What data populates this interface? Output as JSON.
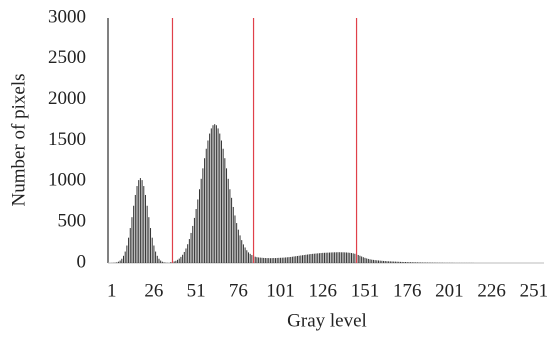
{
  "chart_data": {
    "type": "bar",
    "x_label": "Gray level",
    "y_label": "Number of pixels",
    "x": [
      1,
      2,
      3,
      4,
      5,
      6,
      7,
      8,
      9,
      10,
      11,
      12,
      13,
      14,
      15,
      16,
      17,
      18,
      19,
      20,
      21,
      22,
      23,
      24,
      25,
      26,
      27,
      28,
      29,
      30,
      31,
      32,
      33,
      34,
      35,
      36,
      37,
      38,
      39,
      40,
      41,
      42,
      43,
      44,
      45,
      46,
      47,
      48,
      49,
      50,
      51,
      52,
      53,
      54,
      55,
      56,
      57,
      58,
      59,
      60,
      61,
      62,
      63,
      64,
      65,
      66,
      67,
      68,
      69,
      70,
      71,
      72,
      73,
      74,
      75,
      76,
      77,
      78,
      79,
      80,
      81,
      82,
      83,
      84,
      85,
      86,
      87,
      88,
      89,
      90,
      91,
      92,
      93,
      94,
      95,
      96,
      97,
      98,
      99,
      100,
      101,
      102,
      103,
      104,
      105,
      106,
      107,
      108,
      109,
      110,
      111,
      112,
      113,
      114,
      115,
      116,
      117,
      118,
      119,
      120,
      121,
      122,
      123,
      124,
      125,
      126,
      127,
      128,
      129,
      130,
      131,
      132,
      133,
      134,
      135,
      136,
      137,
      138,
      139,
      140,
      141,
      142,
      143,
      144,
      145,
      146,
      147,
      148,
      149,
      150,
      151,
      152,
      153,
      154,
      155,
      156,
      157,
      158,
      159,
      160,
      161,
      162,
      163,
      164,
      165,
      166,
      167,
      168,
      169,
      170,
      171,
      172,
      173,
      174,
      175,
      176,
      177,
      178,
      179,
      180,
      181,
      182,
      183,
      184,
      185,
      186,
      187,
      188,
      189,
      190,
      191,
      192,
      193,
      194,
      195,
      196,
      197,
      198,
      199,
      200,
      201,
      202,
      203,
      204,
      205,
      206,
      207,
      208,
      209,
      210,
      211,
      212,
      213,
      214,
      215,
      216,
      217,
      218,
      219,
      220,
      221,
      222,
      223,
      224,
      225,
      226,
      227,
      228,
      229,
      230,
      231,
      232,
      233,
      234,
      235,
      236,
      237,
      238,
      239,
      240,
      241,
      242,
      243,
      244,
      245,
      246,
      247,
      248,
      249,
      250,
      251,
      252,
      253,
      254,
      255,
      256
    ],
    "values": [
      1,
      2,
      4,
      8,
      16,
      30,
      52,
      88,
      140,
      214,
      310,
      428,
      561,
      701,
      833,
      942,
      1015,
      1040,
      1015,
      942,
      833,
      701,
      561,
      428,
      310,
      214,
      140,
      88,
      52,
      30,
      16,
      8,
      4,
      2,
      1,
      10,
      13,
      19,
      27,
      39,
      54,
      75,
      101,
      135,
      178,
      230,
      293,
      368,
      454,
      552,
      661,
      778,
      903,
      1031,
      1159,
      1283,
      1399,
      1500,
      1585,
      1648,
      1687,
      1700,
      1687,
      1648,
      1585,
      1500,
      1399,
      1283,
      1159,
      1031,
      903,
      798,
      686,
      582,
      489,
      408,
      338,
      280,
      228,
      190,
      156,
      130,
      112,
      97,
      85,
      77,
      71,
      68,
      66,
      64,
      62,
      61,
      60,
      60,
      59,
      60,
      61,
      60,
      62,
      63,
      64,
      65,
      66,
      68,
      70,
      72,
      74,
      77,
      80,
      83,
      86,
      89,
      92,
      95,
      98,
      101,
      104,
      107,
      110,
      112,
      114,
      116,
      118,
      120,
      122,
      124,
      125,
      126,
      127,
      128,
      129,
      130,
      131,
      131,
      132,
      132,
      131,
      131,
      130,
      129,
      127,
      125,
      122,
      118,
      113,
      106,
      98,
      89,
      80,
      71,
      63,
      56,
      50,
      45,
      41,
      38,
      35,
      33,
      31,
      29,
      27,
      25,
      24,
      22,
      21,
      20,
      19,
      18,
      17,
      16,
      15,
      14,
      13,
      12,
      12,
      11,
      10,
      10,
      9,
      9,
      8,
      8,
      7,
      7,
      6,
      6,
      6,
      5,
      5,
      5,
      4,
      4,
      4,
      3,
      3,
      3,
      3,
      2,
      2,
      2,
      2,
      2,
      2,
      1,
      1,
      1,
      1,
      1,
      1,
      1,
      1,
      1,
      1,
      1,
      1,
      0,
      0,
      0,
      0,
      0,
      0,
      0,
      0,
      0,
      0,
      0,
      0,
      0,
      0,
      0,
      0,
      0,
      0,
      0,
      0,
      0,
      0,
      0,
      0,
      0,
      0,
      0,
      0,
      0,
      0,
      0,
      0,
      0,
      0,
      0,
      0,
      0,
      0,
      0,
      0,
      0
    ],
    "color": "#333333",
    "thresholds": [
      37,
      85,
      146
    ],
    "threshold_color": "#e0404a",
    "xlim": [
      0,
      257
    ],
    "xticks": [
      1,
      26,
      51,
      76,
      101,
      126,
      151,
      176,
      201,
      226,
      251
    ],
    "ylim": [
      0,
      3000
    ],
    "yticks": [
      0,
      500,
      1000,
      1500,
      2000,
      2500,
      3000
    ],
    "grid": false
  }
}
